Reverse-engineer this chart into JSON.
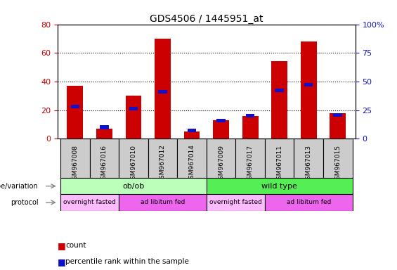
{
  "title": "GDS4506 / 1445951_at",
  "samples": [
    "GSM967008",
    "GSM967016",
    "GSM967010",
    "GSM967012",
    "GSM967014",
    "GSM967009",
    "GSM967017",
    "GSM967011",
    "GSM967013",
    "GSM967015"
  ],
  "counts": [
    37,
    7,
    30,
    70,
    5,
    13,
    16,
    54,
    68,
    18
  ],
  "percentile_ranks": [
    28,
    10,
    26,
    41,
    7,
    16,
    20,
    42,
    47,
    21
  ],
  "left_ylim": [
    0,
    80
  ],
  "right_ylim": [
    0,
    100
  ],
  "left_yticks": [
    0,
    20,
    40,
    60,
    80
  ],
  "right_yticks": [
    0,
    25,
    50,
    75,
    100
  ],
  "right_yticklabels": [
    "0",
    "25",
    "50",
    "75",
    "100%"
  ],
  "bar_color_red": "#cc0000",
  "bar_color_blue": "#1111cc",
  "genotype_groups": [
    {
      "label": "ob/ob",
      "start": 0,
      "end": 5,
      "color": "#bbffbb"
    },
    {
      "label": "wild type",
      "start": 5,
      "end": 10,
      "color": "#55ee55"
    }
  ],
  "protocol_groups": [
    {
      "label": "overnight fasted",
      "start": 0,
      "end": 2,
      "color": "#ffbbff"
    },
    {
      "label": "ad libitum fed",
      "start": 2,
      "end": 5,
      "color": "#ee66ee"
    },
    {
      "label": "overnight fasted",
      "start": 5,
      "end": 7,
      "color": "#ffbbff"
    },
    {
      "label": "ad libitum fed",
      "start": 7,
      "end": 10,
      "color": "#ee66ee"
    }
  ],
  "legend_items": [
    {
      "label": "count",
      "color": "#cc0000"
    },
    {
      "label": "percentile rank within the sample",
      "color": "#1111cc"
    }
  ],
  "genotype_label": "genotype/variation",
  "protocol_label": "protocol",
  "sample_bg_color": "#cccccc",
  "background_color": "#ffffff",
  "bar_width": 0.55
}
